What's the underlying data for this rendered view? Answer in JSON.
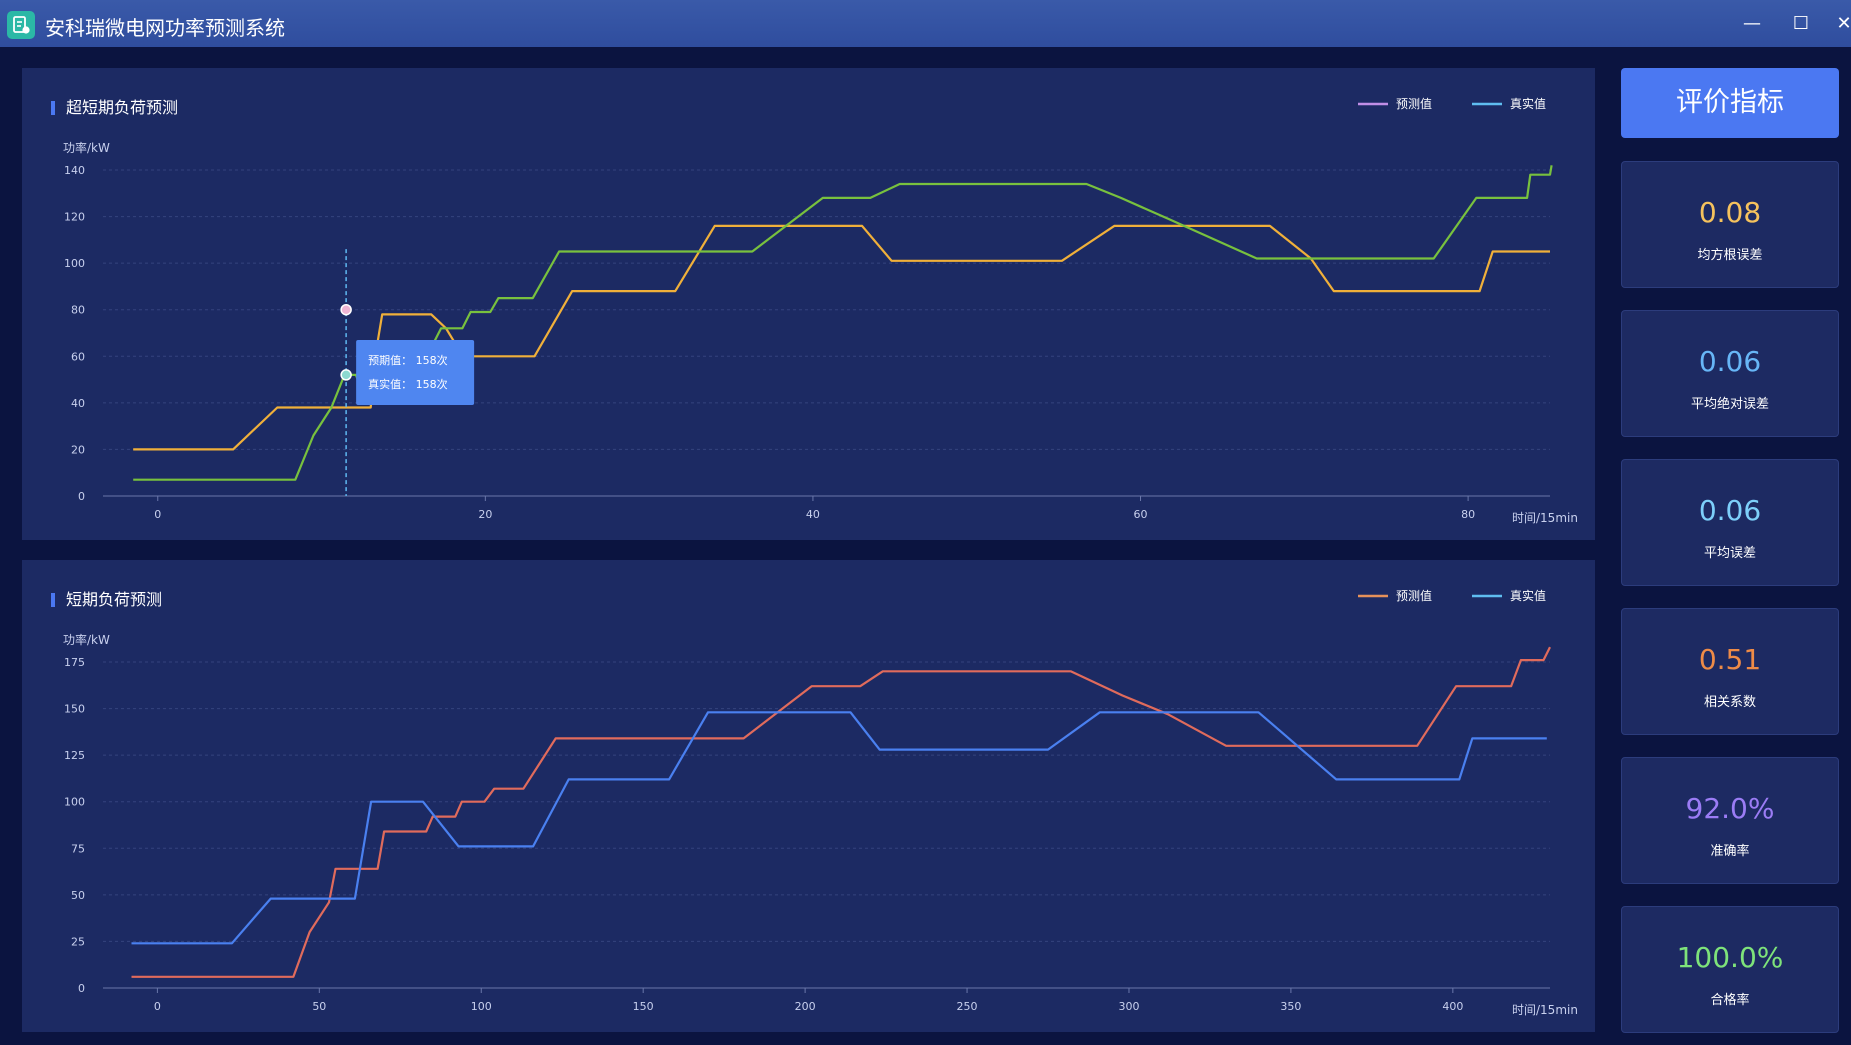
{
  "window": {
    "title": "安科瑞微电网功率预测系统",
    "controls": {
      "minimize": "—",
      "maximize": "☐",
      "close": "✕"
    }
  },
  "colors": {
    "background": "#0b1440",
    "panel": "#1c2a63",
    "titlebar": "#34529f",
    "accent": "#4b78f2",
    "axis_text": "#c8d0ee",
    "gridline": "#34437e",
    "tooltip": "#4f86f0"
  },
  "sidebar": {
    "header": "评价指标",
    "metrics": [
      {
        "value": "0.08",
        "label": "均方根误差",
        "color": "#f5c25d"
      },
      {
        "value": "0.06",
        "label": "平均绝对误差",
        "color": "#67b6f7"
      },
      {
        "value": "0.06",
        "label": "平均误差",
        "color": "#7dcffa"
      },
      {
        "value": "0.51",
        "label": "相关系数",
        "color": "#ee8b47"
      },
      {
        "value": "92.0%",
        "label": "准确率",
        "color": "#9b7cf5"
      },
      {
        "value": "100.0%",
        "label": "合格率",
        "color": "#7ee37a"
      }
    ]
  },
  "chart_data": [
    {
      "type": "line",
      "title": "超短期负荷预测",
      "ylabel": "功率/kW",
      "xlabel": "时间/15min",
      "xlim": [
        -2,
        85
      ],
      "ylim": [
        0,
        140
      ],
      "xticks": [
        0,
        20,
        40,
        60,
        80
      ],
      "yticks": [
        0,
        20,
        40,
        60,
        80,
        100,
        120,
        140
      ],
      "grid": true,
      "legend_position": "top-right",
      "legend": [
        {
          "name": "预测值",
          "color": "#c08ee6"
        },
        {
          "name": "真实值",
          "color": "#5fbdf0"
        }
      ],
      "series": [
        {
          "color": "#f0b03a",
          "points": [
            [
              -1.5,
              20
            ],
            [
              4.6,
              20
            ],
            [
              7.3,
              38
            ],
            [
              11.9,
              38
            ],
            [
              13,
              38
            ],
            [
              13.3,
              61
            ],
            [
              13.7,
              78
            ],
            [
              16.7,
              78
            ],
            [
              17.6,
              72
            ],
            [
              18.2,
              65
            ],
            [
              18.6,
              60
            ],
            [
              23,
              60
            ],
            [
              25.3,
              88
            ],
            [
              31.6,
              88
            ],
            [
              34,
              116
            ],
            [
              43,
              116
            ],
            [
              44.8,
              101
            ],
            [
              55.2,
              101
            ],
            [
              58.4,
              116
            ],
            [
              67.9,
              116
            ],
            [
              70.4,
              102
            ],
            [
              71.8,
              88
            ],
            [
              80.7,
              88
            ],
            [
              81.5,
              105
            ],
            [
              85,
              105
            ]
          ]
        },
        {
          "color": "#78c13e",
          "points": [
            [
              -1.5,
              7
            ],
            [
              8.4,
              7
            ],
            [
              9.5,
              26
            ],
            [
              10.6,
              38
            ],
            [
              11.4,
              52
            ],
            [
              12.1,
              52
            ],
            [
              12.5,
              45
            ],
            [
              13.5,
              61
            ],
            [
              16.5,
              61
            ],
            [
              17.3,
              72
            ],
            [
              18.6,
              72
            ],
            [
              19.1,
              79
            ],
            [
              20.3,
              79
            ],
            [
              20.8,
              85
            ],
            [
              22.9,
              85
            ],
            [
              24.5,
              105
            ],
            [
              36.3,
              105
            ],
            [
              40.6,
              128
            ],
            [
              43.5,
              128
            ],
            [
              45.3,
              134
            ],
            [
              56.7,
              134
            ],
            [
              58.8,
              128
            ],
            [
              61.7,
              119
            ],
            [
              67.1,
              102
            ],
            [
              77.9,
              102
            ],
            [
              80.5,
              128
            ],
            [
              83.6,
              128
            ],
            [
              83.8,
              138
            ],
            [
              85,
              138
            ],
            [
              85.1,
              142
            ]
          ]
        }
      ],
      "tooltip": {
        "x": 11.5,
        "lines": [
          "预期值： 158次",
          "真实值： 158次"
        ],
        "markers": [
          {
            "y": 80,
            "color": "#f0b5d4"
          },
          {
            "y": 52,
            "color": "#8cd9d0"
          }
        ]
      }
    },
    {
      "type": "line",
      "title": "短期负荷预测",
      "ylabel": "功率/kW",
      "xlabel": "时间/15min",
      "xlim": [
        -10,
        430
      ],
      "ylim": [
        0,
        175
      ],
      "xticks": [
        0,
        50,
        100,
        150,
        200,
        250,
        300,
        350,
        400
      ],
      "yticks": [
        0,
        25,
        50,
        75,
        100,
        125,
        150,
        175
      ],
      "grid": true,
      "legend_position": "top-right",
      "legend": [
        {
          "name": "预测值",
          "color": "#e6915a"
        },
        {
          "name": "真实值",
          "color": "#5fbdf0"
        }
      ],
      "series": [
        {
          "color": "#e06b5c",
          "points": [
            [
              -8,
              6
            ],
            [
              42,
              6
            ],
            [
              47,
              30
            ],
            [
              53,
              46
            ],
            [
              55,
              64
            ],
            [
              68,
              64
            ],
            [
              70,
              84
            ],
            [
              83,
              84
            ],
            [
              85,
              92
            ],
            [
              92,
              92
            ],
            [
              94,
              100
            ],
            [
              101,
              100
            ],
            [
              104,
              107
            ],
            [
              113,
              107
            ],
            [
              123,
              134
            ],
            [
              181,
              134
            ],
            [
              202,
              162
            ],
            [
              217,
              162
            ],
            [
              224,
              170
            ],
            [
              282,
              170
            ],
            [
              298,
              157
            ],
            [
              312,
              147
            ],
            [
              330,
              130
            ],
            [
              389,
              130
            ],
            [
              401,
              162
            ],
            [
              418,
              162
            ],
            [
              421,
              176
            ],
            [
              428,
              176
            ],
            [
              430,
              183
            ]
          ]
        },
        {
          "color": "#4a80f0",
          "points": [
            [
              -8,
              24
            ],
            [
              23,
              24
            ],
            [
              35,
              48
            ],
            [
              61,
              48
            ],
            [
              66,
              100
            ],
            [
              82,
              100
            ],
            [
              93,
              76
            ],
            [
              116,
              76
            ],
            [
              127,
              112
            ],
            [
              158,
              112
            ],
            [
              170,
              148
            ],
            [
              214,
              148
            ],
            [
              223,
              128
            ],
            [
              275,
              128
            ],
            [
              291,
              148
            ],
            [
              340,
              148
            ],
            [
              364,
              112
            ],
            [
              402,
              112
            ],
            [
              406,
              134
            ],
            [
              429,
              134
            ]
          ]
        }
      ]
    }
  ]
}
